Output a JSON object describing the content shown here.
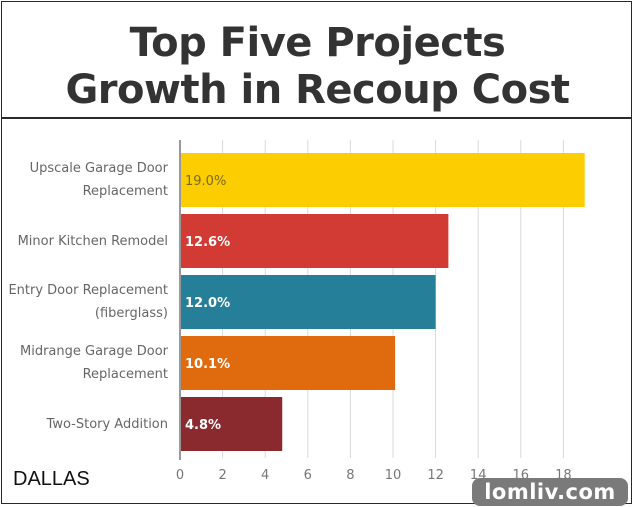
{
  "title_lines": [
    "Top Five Projects",
    "Growth in Recoup Cost"
  ],
  "city_label": "DALLAS",
  "watermark": "lomliv.com",
  "chart_data": {
    "type": "bar",
    "orientation": "horizontal",
    "title": "Top Five Projects Growth in Recoup Cost",
    "categories": [
      "Upscale Garage Door Replacement",
      "Minor Kitchen Remodel",
      "Entry Door Replacement (fiberglass)",
      "Midrange Garage Door Replacement",
      "Two-Story Addition"
    ],
    "category_label_lines": [
      [
        "Upscale Garage Door",
        "Replacement"
      ],
      [
        "Minor Kitchen Remodel"
      ],
      [
        "Entry Door Replacement",
        "(fiberglass)"
      ],
      [
        "Midrange Garage Door",
        "Replacement"
      ],
      [
        "Two-Story Addition"
      ]
    ],
    "values": [
      19.0,
      12.6,
      12.0,
      10.1,
      4.8
    ],
    "data_labels": [
      "19.0%",
      "12.6%",
      "12.0%",
      "10.1%",
      "4.8%"
    ],
    "colors": [
      "#fccd00",
      "#d13b33",
      "#267f99",
      "#e06b0f",
      "#8a2a2e"
    ],
    "label_colors": [
      "#7a6a20",
      "#ffffff",
      "#ffffff",
      "#ffffff",
      "#ffffff"
    ],
    "xticks": [
      0,
      2,
      4,
      6,
      8,
      10,
      12,
      14,
      16,
      18
    ],
    "xlim": [
      0,
      18.4
    ],
    "grid": true,
    "xlabel": "",
    "ylabel": ""
  }
}
